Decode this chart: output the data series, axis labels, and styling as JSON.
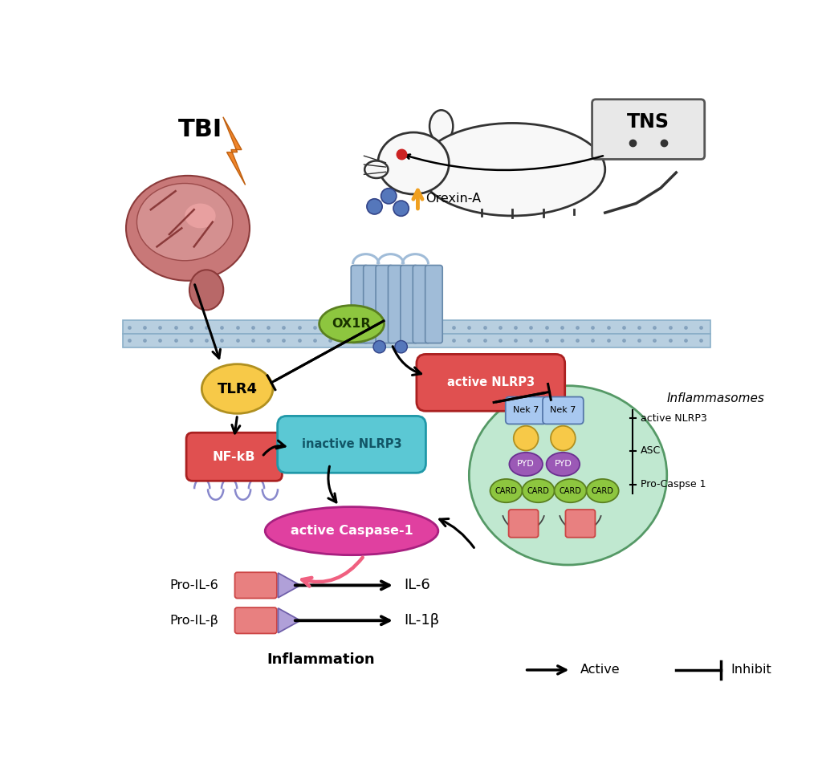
{
  "bg_color": "#ffffff",
  "membrane_color": "#b8cfe0",
  "tbi_text": "TBI",
  "tns_text": "TNS",
  "orexin_text": "Orexin-A",
  "ox1r_text": "OX1R",
  "ox1r_color": "#8dc63f",
  "tlr4_text": "TLR4",
  "tlr4_color": "#f7c948",
  "nfkb_text": "NF-kB",
  "nfkb_color": "#e05050",
  "inactive_nlrp3_text": "inactive NLRP3",
  "inactive_nlrp3_color": "#5bc8d4",
  "active_nlrp3_text": "active NLRP3",
  "active_nlrp3_color": "#e05050",
  "active_caspase_text": "active Caspase-1",
  "active_caspase_color": "#e040a0",
  "inflammasome_text": "Inflammasomes",
  "inflammasome_color": "#c0e8d0",
  "nek7_color": "#a8c8f0",
  "pyd_color": "#9b59b6",
  "card_color": "#8dc63f",
  "pro_square_color": "#e88080",
  "pro_il6_text": "Pro-IL-6",
  "pro_ilb_text": "Pro-IL-β",
  "il6_text": "IL-6",
  "il1b_text": "IL-1β",
  "inflammation_text": "Inflammation",
  "legend_active": "Active",
  "legend_inhibit": "Inhibit",
  "pink_arrow_color": "#f06080",
  "orange_color": "#f0a020"
}
